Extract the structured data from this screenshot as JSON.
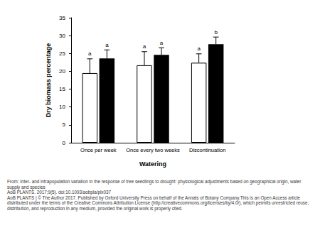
{
  "chart_data": {
    "type": "bar",
    "xlabel": "Watering",
    "ylabel": "Dry biomass percentage",
    "categories": [
      "Once per week",
      "Once every two weeks",
      "Discontinuation"
    ],
    "series": [
      {
        "color": "#ffffff",
        "values": [
          19.5,
          21.7,
          22.4
        ],
        "errors": [
          4.0,
          3.8,
          2.5
        ],
        "letters": [
          "a",
          "a",
          "a"
        ]
      },
      {
        "color": "#000000",
        "values": [
          23.6,
          24.6,
          27.6
        ],
        "errors": [
          2.4,
          2.0,
          2.0
        ],
        "letters": [
          "a",
          "a",
          "b"
        ]
      }
    ],
    "ylim": [
      0,
      35
    ],
    "yticks": [
      0,
      5,
      10,
      15,
      20,
      25,
      30,
      35
    ],
    "grid": false
  },
  "footer": [
    "From: Inter- and intrapopulation variation in the response of tree seedlings to drought: physiological adjustments based on geographical origin, water supply and species",
    "AoB PLANTS. 2017;9(5). doi:10.1093/aobpla/plx037",
    "AoB PLANTS | © The Author 2017. Published by Oxford University Press on behalf of the Annals of Botany Company.This is an Open Access article distributed under the terms of the Creative Commons Attribution License (http://creativecommons.org/licenses/by/4.0/), which permits unrestricted reuse, distribution, and reproduction in any medium, provided the original work is properly cited."
  ]
}
